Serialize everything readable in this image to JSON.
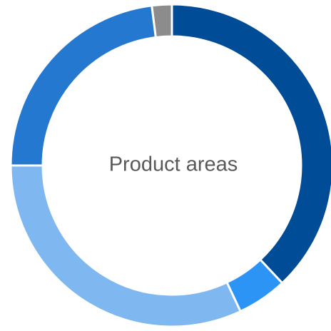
{
  "chart_data": {
    "type": "donut",
    "title": "Product areas",
    "values": [
      38,
      5,
      32,
      23,
      2
    ],
    "colors": [
      "#004c97",
      "#2b94f5",
      "#7fb7f0",
      "#2478cf",
      "#8c8c8c"
    ]
  }
}
